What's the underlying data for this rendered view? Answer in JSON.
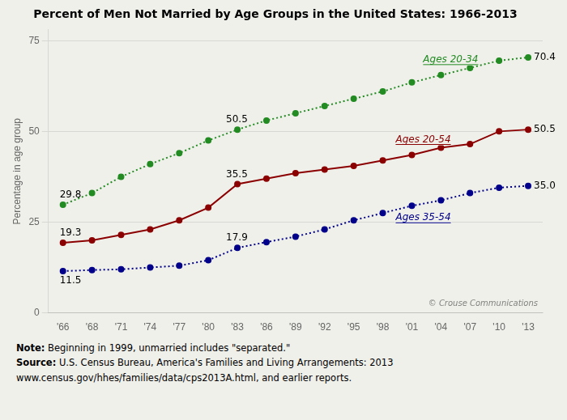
{
  "chart_data": {
    "type": "line",
    "title": "Percent of Men Not Married by Age Groups in the United States: 1966-2013",
    "y_label": "Percentage in age group",
    "categories": [
      "'66",
      "'68",
      "'71",
      "'74",
      "'77",
      "'80",
      "'83",
      "'86",
      "'89",
      "'92",
      "'95",
      "'98",
      "'01",
      "'04",
      "'07",
      "'10",
      "'13"
    ],
    "series": [
      {
        "name": "Ages 20-34",
        "color": "#228B22",
        "line_style": "dotted",
        "marker": "o",
        "values": [
          29.8,
          33.0,
          37.5,
          41.0,
          44.0,
          47.5,
          50.5,
          53.0,
          55.0,
          57.0,
          59.0,
          61.0,
          63.5,
          65.5,
          67.5,
          69.5,
          70.4
        ]
      },
      {
        "name": "Ages 20-54",
        "color": "#8B0000",
        "line_style": "solid",
        "marker": "o",
        "values": [
          19.3,
          20.0,
          21.5,
          23.0,
          25.5,
          29.0,
          35.5,
          37.0,
          38.5,
          39.5,
          40.5,
          42.0,
          43.5,
          45.5,
          46.5,
          50.0,
          50.5
        ]
      },
      {
        "name": "Ages 35-54",
        "color": "#00008B",
        "line_style": "dotted",
        "marker": "o",
        "values": [
          11.5,
          11.8,
          12.0,
          12.5,
          13.0,
          14.5,
          17.9,
          19.5,
          21.0,
          23.0,
          25.5,
          27.5,
          29.5,
          31.0,
          33.0,
          34.5,
          35.0
        ]
      }
    ],
    "ylim": [
      0,
      78
    ],
    "yticks": [
      0,
      25,
      50,
      75
    ],
    "grid": "y",
    "annotations": [
      {
        "series": "Ages 20-34",
        "category": "'66",
        "label": "29.8"
      },
      {
        "series": "Ages 20-34",
        "category": "'83",
        "label": "50.5"
      },
      {
        "series": "Ages 20-34",
        "category": "'13",
        "label": "70.4"
      },
      {
        "series": "Ages 20-54",
        "category": "'66",
        "label": "19.3"
      },
      {
        "series": "Ages 20-54",
        "category": "'83",
        "label": "35.5"
      },
      {
        "series": "Ages 20-54",
        "category": "'13",
        "label": "50.5"
      },
      {
        "series": "Ages 35-54",
        "category": "'66",
        "label": "11.5"
      },
      {
        "series": "Ages 35-54",
        "category": "'83",
        "label": "17.9"
      },
      {
        "series": "Ages 35-54",
        "category": "'13",
        "label": "35.0"
      }
    ],
    "copyright": "© Crouse Communications",
    "background_color": "#f0f0eb",
    "footnotes": [
      {
        "bold": "Note:",
        "text": "Beginning in 1999, unmarried includes \"separated.\""
      },
      {
        "bold": "Source:",
        "text": "U.S. Census Bureau, America's Families and Living Arrangements: 2013"
      },
      {
        "text": "www.census.gov/hhes/families/data/cps2013A.html, and earlier reports."
      }
    ]
  }
}
